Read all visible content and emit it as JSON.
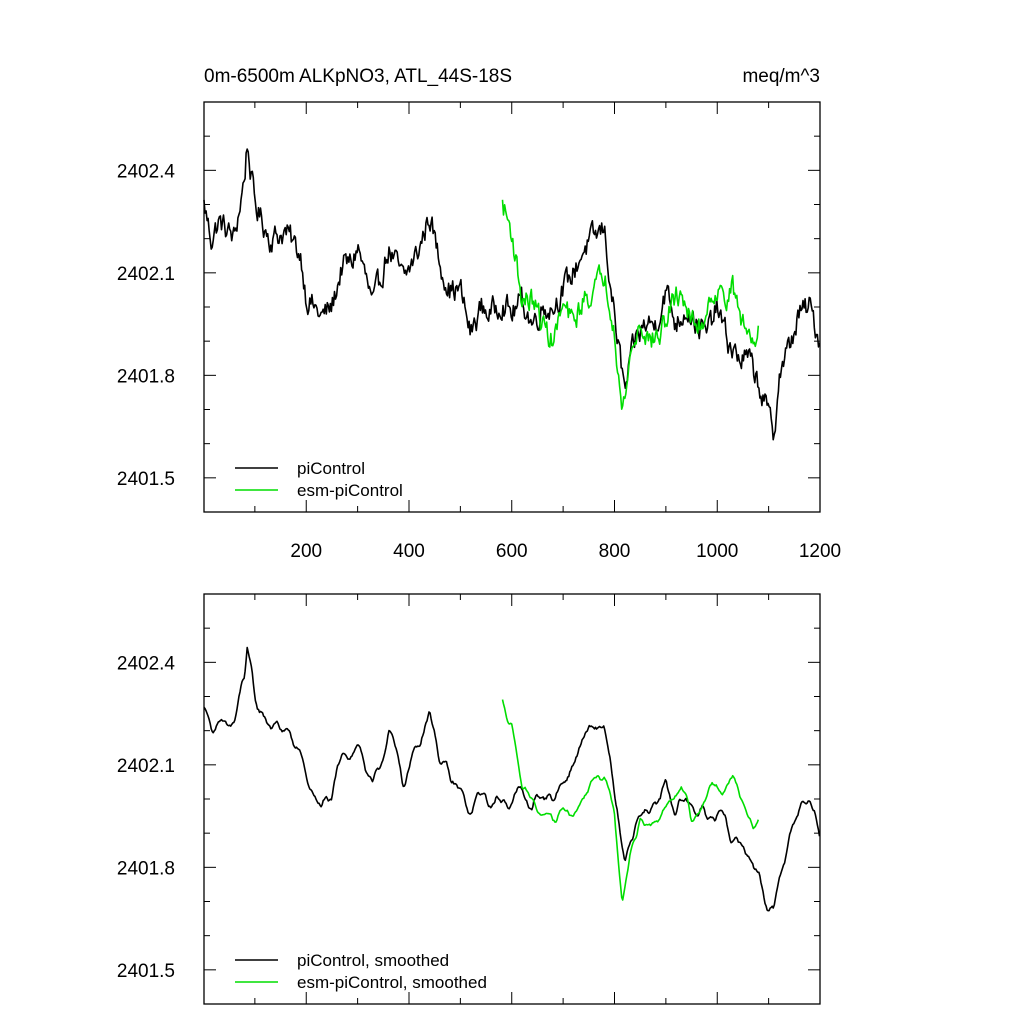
{
  "chart_data": [
    {
      "type": "line",
      "title_left": "0m-6500m ALKpNO3, ATL_44S-18S",
      "title_right": "meq/m^3",
      "xlim": [
        1,
        1200
      ],
      "ylim": [
        2401.4,
        2402.6
      ],
      "xticks": [
        200,
        400,
        600,
        800,
        1000,
        1200
      ],
      "xtick_labels": [
        "200",
        "400",
        "600",
        "800",
        "1000",
        "1200"
      ],
      "show_xtick_labels": true,
      "yticks": [
        2401.5,
        2401.8,
        2402.1,
        2402.4
      ],
      "ytick_labels": [
        "2401.5",
        "2401.8",
        "2402.1",
        "2402.4"
      ],
      "legend": {
        "position": "bottom-left",
        "entries": [
          "piControl",
          "esm-piControl"
        ]
      },
      "series": [
        {
          "name": "piControl",
          "color": "#000000",
          "smoothed": false,
          "anchors": [
            [
              1,
              2402.3
            ],
            [
              15,
              2402.2
            ],
            [
              30,
              2402.25
            ],
            [
              60,
              2402.2
            ],
            [
              80,
              2402.38
            ],
            [
              85,
              2402.48
            ],
            [
              100,
              2402.3
            ],
            [
              130,
              2402.2
            ],
            [
              160,
              2402.22
            ],
            [
              190,
              2402.15
            ],
            [
              200,
              2402.03
            ],
            [
              230,
              2401.97
            ],
            [
              250,
              2402.0
            ],
            [
              270,
              2402.12
            ],
            [
              290,
              2402.13
            ],
            [
              300,
              2402.18
            ],
            [
              330,
              2402.0
            ],
            [
              360,
              2402.17
            ],
            [
              390,
              2402.08
            ],
            [
              420,
              2402.17
            ],
            [
              440,
              2402.27
            ],
            [
              460,
              2402.13
            ],
            [
              480,
              2402.05
            ],
            [
              500,
              2402.05
            ],
            [
              520,
              2401.92
            ],
            [
              540,
              2402.0
            ],
            [
              560,
              2401.98
            ],
            [
              580,
              2402.02
            ],
            [
              600,
              2401.98
            ],
            [
              620,
              2402.02
            ],
            [
              640,
              2401.95
            ],
            [
              660,
              2402.0
            ],
            [
              680,
              2402.0
            ],
            [
              700,
              2402.05
            ],
            [
              720,
              2402.1
            ],
            [
              740,
              2402.17
            ],
            [
              760,
              2402.2
            ],
            [
              780,
              2402.23
            ],
            [
              800,
              2401.97
            ],
            [
              820,
              2401.75
            ],
            [
              840,
              2401.9
            ],
            [
              860,
              2401.95
            ],
            [
              880,
              2401.95
            ],
            [
              900,
              2402.05
            ],
            [
              920,
              2401.95
            ],
            [
              940,
              2402.0
            ],
            [
              960,
              2401.95
            ],
            [
              980,
              2401.92
            ],
            [
              1000,
              2402.0
            ],
            [
              1020,
              2401.9
            ],
            [
              1040,
              2401.85
            ],
            [
              1060,
              2401.85
            ],
            [
              1080,
              2401.78
            ],
            [
              1100,
              2401.68
            ],
            [
              1110,
              2401.62
            ],
            [
              1120,
              2401.8
            ],
            [
              1140,
              2401.88
            ],
            [
              1160,
              2401.98
            ],
            [
              1180,
              2402.0
            ],
            [
              1200,
              2401.9
            ]
          ],
          "amplitude": 0.06
        },
        {
          "name": "esm-piControl",
          "color": "#00dd00",
          "smoothed": false,
          "anchors": [
            [
              582,
              2402.3
            ],
            [
              600,
              2402.22
            ],
            [
              620,
              2402.02
            ],
            [
              640,
              2402.02
            ],
            [
              660,
              2401.95
            ],
            [
              680,
              2401.9
            ],
            [
              700,
              2402.0
            ],
            [
              720,
              2401.95
            ],
            [
              740,
              2402.02
            ],
            [
              760,
              2402.05
            ],
            [
              780,
              2402.1
            ],
            [
              800,
              2401.95
            ],
            [
              815,
              2401.68
            ],
            [
              830,
              2401.85
            ],
            [
              850,
              2401.95
            ],
            [
              870,
              2401.9
            ],
            [
              890,
              2401.92
            ],
            [
              910,
              2402.0
            ],
            [
              930,
              2402.05
            ],
            [
              950,
              2401.95
            ],
            [
              970,
              2401.95
            ],
            [
              990,
              2402.05
            ],
            [
              1010,
              2402.03
            ],
            [
              1030,
              2402.05
            ],
            [
              1050,
              2401.95
            ],
            [
              1070,
              2401.9
            ],
            [
              1080,
              2401.95
            ]
          ],
          "amplitude": 0.05
        }
      ]
    },
    {
      "type": "line",
      "title_left": "",
      "title_right": "",
      "xlim": [
        1,
        1200
      ],
      "ylim": [
        2401.4,
        2402.6
      ],
      "xticks": [
        200,
        400,
        600,
        800,
        1000,
        1200
      ],
      "xtick_labels": [],
      "show_xtick_labels": false,
      "yticks": [
        2401.5,
        2401.8,
        2402.1,
        2402.4
      ],
      "ytick_labels": [
        "2401.5",
        "2401.8",
        "2402.1",
        "2402.4"
      ],
      "legend": {
        "position": "bottom-left",
        "entries": [
          "piControl, smoothed",
          "esm-piControl, smoothed"
        ]
      },
      "series": [
        {
          "name": "piControl, smoothed",
          "color": "#000000",
          "smoothed": true,
          "anchors": [
            [
              1,
              2402.28
            ],
            [
              15,
              2402.22
            ],
            [
              30,
              2402.2
            ],
            [
              60,
              2402.22
            ],
            [
              80,
              2402.36
            ],
            [
              85,
              2402.45
            ],
            [
              100,
              2402.28
            ],
            [
              130,
              2402.22
            ],
            [
              160,
              2402.2
            ],
            [
              190,
              2402.13
            ],
            [
              200,
              2402.05
            ],
            [
              230,
              2401.98
            ],
            [
              250,
              2402.0
            ],
            [
              270,
              2402.12
            ],
            [
              290,
              2402.15
            ],
            [
              300,
              2402.17
            ],
            [
              330,
              2402.02
            ],
            [
              360,
              2402.2
            ],
            [
              390,
              2402.05
            ],
            [
              420,
              2402.17
            ],
            [
              440,
              2402.27
            ],
            [
              460,
              2402.12
            ],
            [
              480,
              2402.05
            ],
            [
              500,
              2402.02
            ],
            [
              520,
              2401.95
            ],
            [
              540,
              2402.02
            ],
            [
              560,
              2401.98
            ],
            [
              580,
              2402.0
            ],
            [
              600,
              2402.0
            ],
            [
              620,
              2402.02
            ],
            [
              640,
              2401.97
            ],
            [
              660,
              2402.02
            ],
            [
              680,
              2402.0
            ],
            [
              700,
              2402.05
            ],
            [
              720,
              2402.1
            ],
            [
              740,
              2402.18
            ],
            [
              760,
              2402.2
            ],
            [
              780,
              2402.22
            ],
            [
              800,
              2402.0
            ],
            [
              820,
              2401.8
            ],
            [
              840,
              2401.92
            ],
            [
              860,
              2401.98
            ],
            [
              880,
              2401.97
            ],
            [
              900,
              2402.05
            ],
            [
              920,
              2401.97
            ],
            [
              940,
              2402.0
            ],
            [
              960,
              2401.97
            ],
            [
              980,
              2401.95
            ],
            [
              1000,
              2401.97
            ],
            [
              1020,
              2401.9
            ],
            [
              1040,
              2401.88
            ],
            [
              1060,
              2401.85
            ],
            [
              1080,
              2401.78
            ],
            [
              1100,
              2401.68
            ],
            [
              1110,
              2401.65
            ],
            [
              1120,
              2401.78
            ],
            [
              1140,
              2401.88
            ],
            [
              1160,
              2401.98
            ],
            [
              1180,
              2401.98
            ],
            [
              1200,
              2401.9
            ]
          ],
          "amplitude": 0.035
        },
        {
          "name": "esm-piControl, smoothed",
          "color": "#00dd00",
          "smoothed": true,
          "anchors": [
            [
              582,
              2402.28
            ],
            [
              600,
              2402.22
            ],
            [
              620,
              2402.05
            ],
            [
              640,
              2402.0
            ],
            [
              660,
              2401.95
            ],
            [
              680,
              2401.92
            ],
            [
              700,
              2401.98
            ],
            [
              720,
              2401.95
            ],
            [
              740,
              2402.0
            ],
            [
              760,
              2402.05
            ],
            [
              780,
              2402.08
            ],
            [
              800,
              2401.95
            ],
            [
              815,
              2401.7
            ],
            [
              830,
              2401.85
            ],
            [
              850,
              2401.95
            ],
            [
              870,
              2401.92
            ],
            [
              890,
              2401.95
            ],
            [
              910,
              2402.0
            ],
            [
              930,
              2402.05
            ],
            [
              950,
              2401.95
            ],
            [
              970,
              2401.97
            ],
            [
              990,
              2402.05
            ],
            [
              1010,
              2402.02
            ],
            [
              1030,
              2402.05
            ],
            [
              1050,
              2402.0
            ],
            [
              1070,
              2401.92
            ],
            [
              1080,
              2401.95
            ]
          ],
          "amplitude": 0.03
        }
      ]
    }
  ]
}
